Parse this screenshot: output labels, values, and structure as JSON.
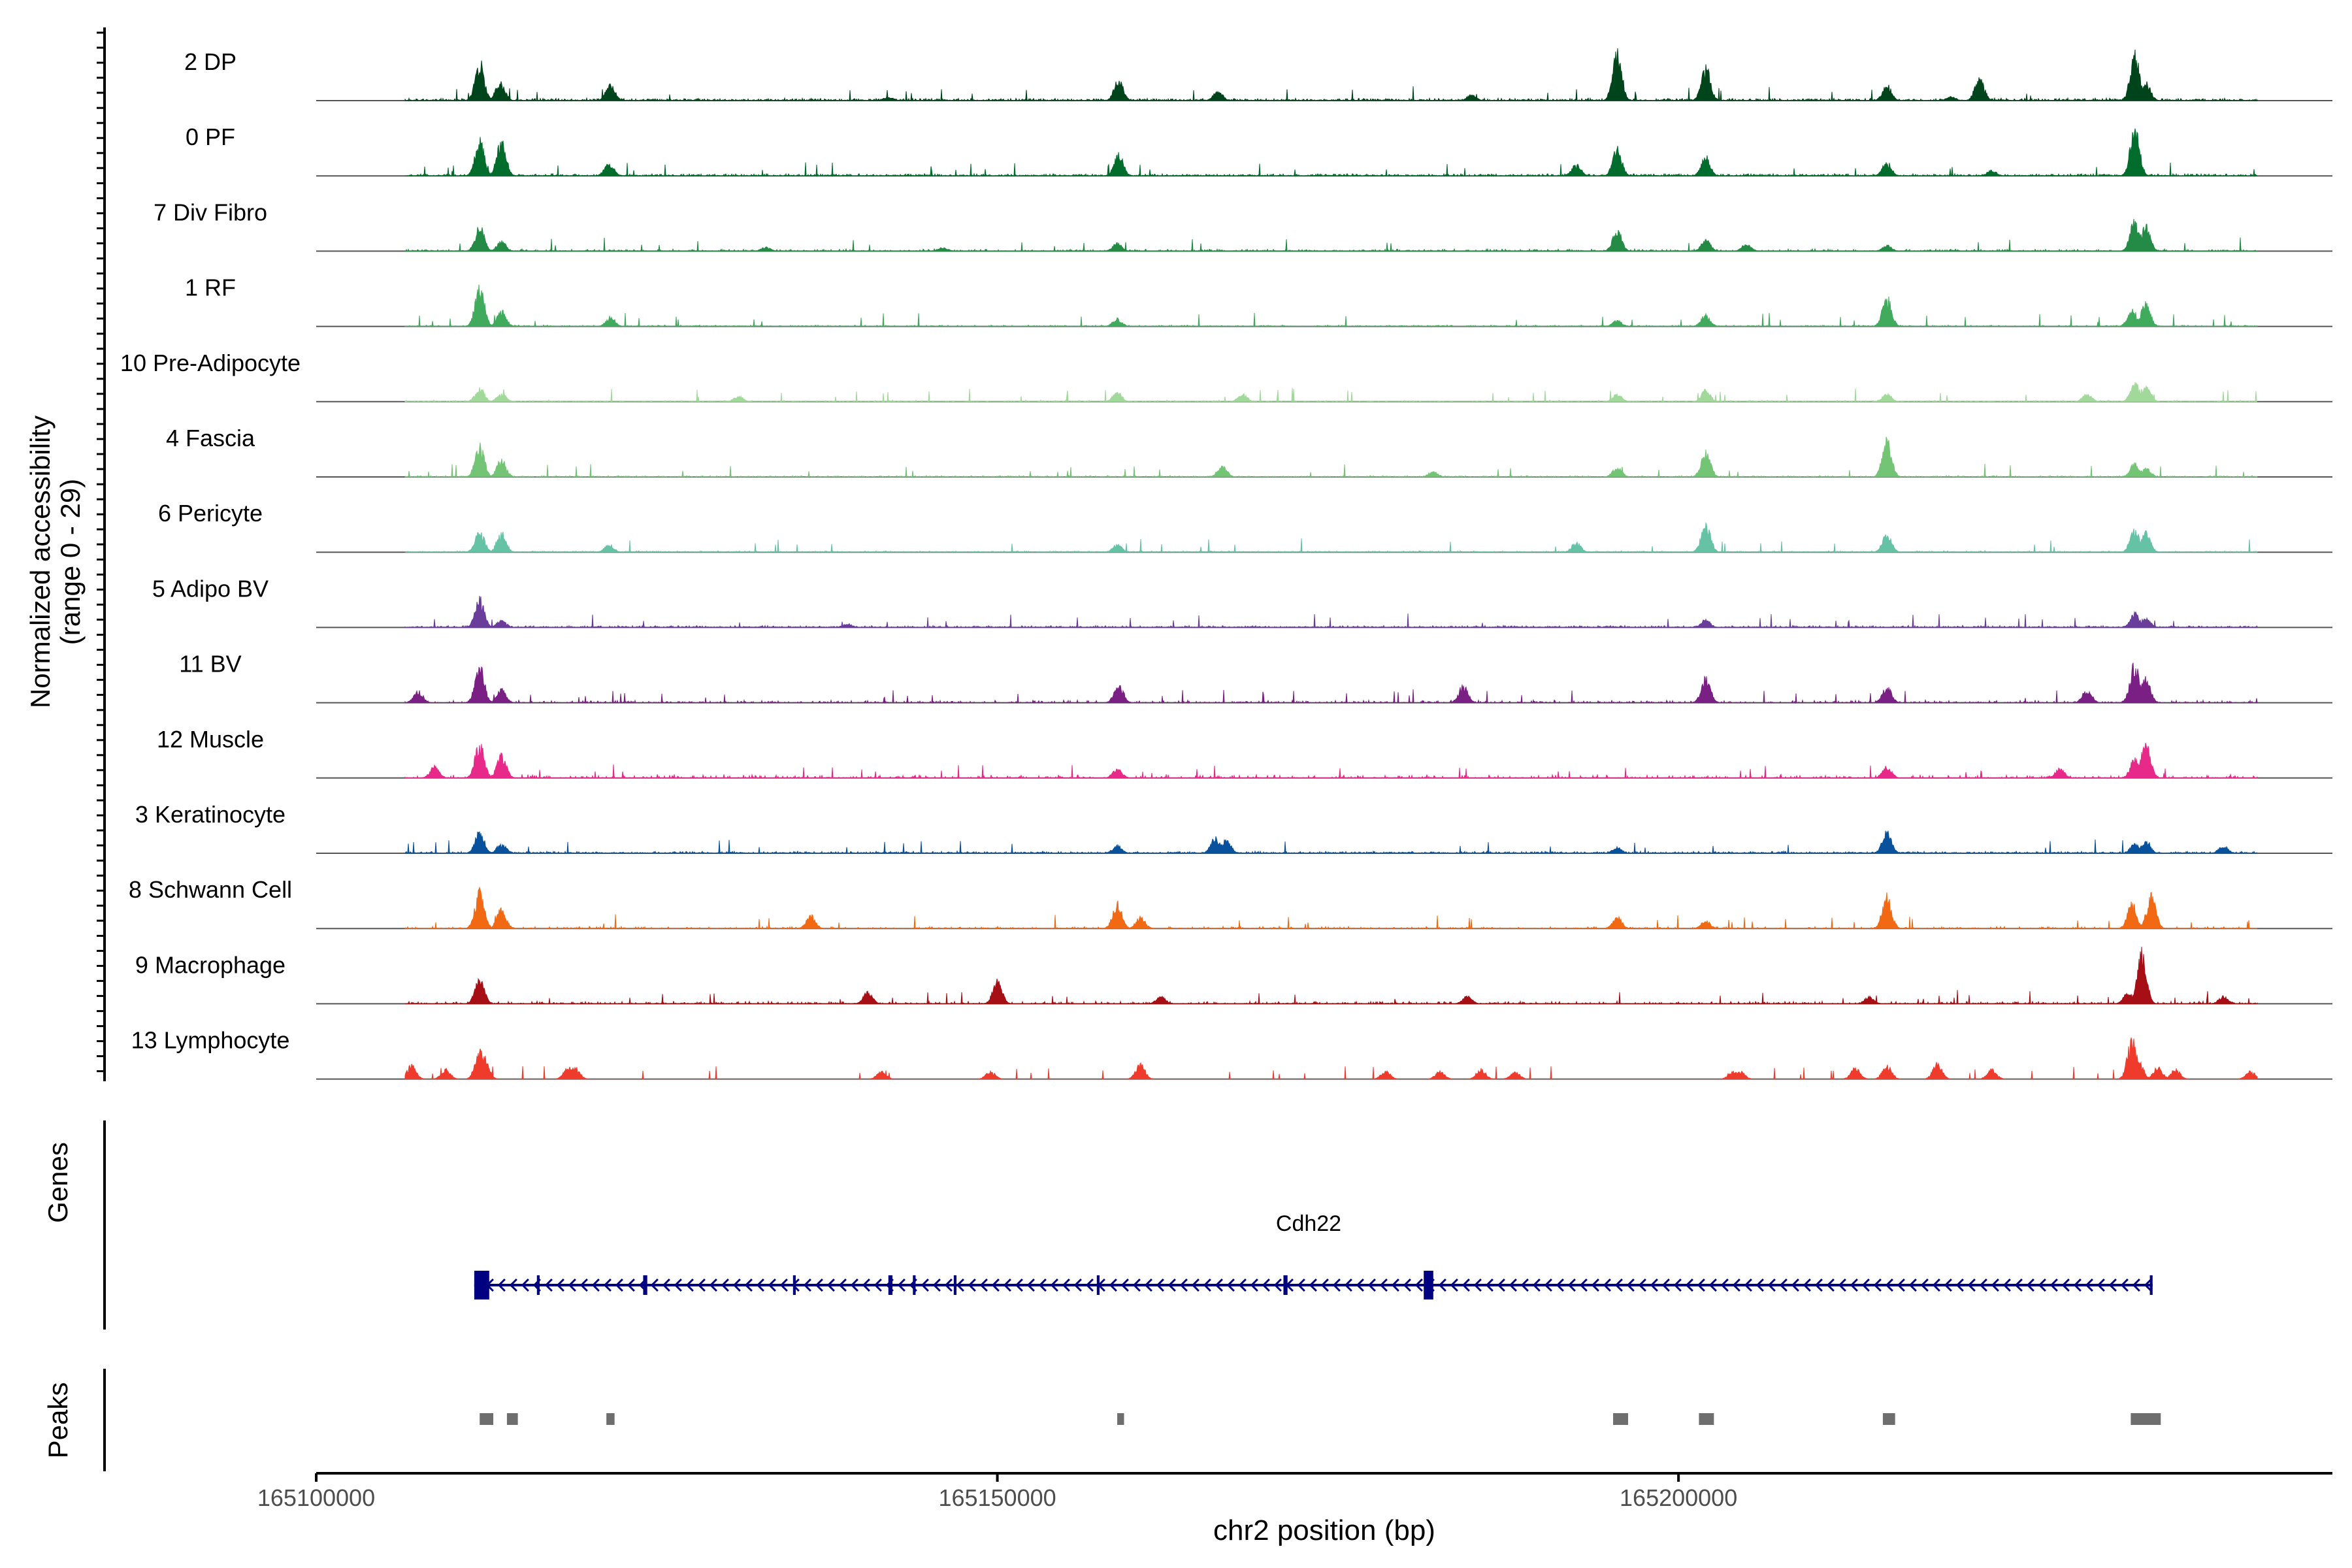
{
  "chart_data": {
    "type": "area",
    "title": "",
    "ylabel_line1": "Normalized accessibility",
    "ylabel_line2": "(range 0 - 29)",
    "xlabel": "chr2 position (bp)",
    "xlim": [
      165100000,
      165248000
    ],
    "xticks": [
      165100000,
      165150000,
      165200000
    ],
    "xtick_labels": [
      "165100000",
      "165150000",
      "165200000"
    ],
    "ylim": [
      0,
      29
    ],
    "genes_label": "Genes",
    "peaks_label": "Peaks",
    "gene": {
      "name": "Cdh22",
      "strand": "-",
      "start": 165111600,
      "end": 165234800,
      "exons": [
        [
          165111600,
          165112700
        ],
        [
          165116200,
          165116400
        ],
        [
          165124000,
          165124300
        ],
        [
          165135000,
          165135200
        ],
        [
          165142000,
          165142300
        ],
        [
          165143800,
          165144000
        ],
        [
          165146800,
          165147000
        ],
        [
          165157300,
          165157500
        ],
        [
          165171000,
          165171300
        ],
        [
          165181300,
          165182000
        ],
        [
          165234600,
          165234800
        ]
      ]
    },
    "peaks": [
      [
        165112000,
        165113000
      ],
      [
        165114000,
        165114800
      ],
      [
        165121300,
        165121900
      ],
      [
        165158800,
        165159300
      ],
      [
        165195200,
        165196300
      ],
      [
        165201500,
        165202600
      ],
      [
        165215000,
        165215900
      ],
      [
        165233200,
        165235400
      ]
    ],
    "series": [
      {
        "name": "2 DP",
        "color": "#00441b",
        "noise": 0.55,
        "density": 0.9,
        "peaks": [
          [
            165112000,
            20
          ],
          [
            165113500,
            10
          ],
          [
            165121600,
            8
          ],
          [
            165158900,
            11
          ],
          [
            165166200,
            5
          ],
          [
            165184800,
            3
          ],
          [
            165195500,
            26
          ],
          [
            165202000,
            18
          ],
          [
            165215300,
            8
          ],
          [
            165222100,
            12
          ],
          [
            165233500,
            24
          ],
          [
            165234300,
            10
          ],
          [
            165220000,
            2
          ],
          [
            165142000,
            2
          ]
        ]
      },
      {
        "name": "0 PF",
        "color": "#006d2c",
        "noise": 0.5,
        "density": 0.9,
        "peaks": [
          [
            165112000,
            18
          ],
          [
            165113600,
            18
          ],
          [
            165121500,
            7
          ],
          [
            165158900,
            11
          ],
          [
            165192500,
            6
          ],
          [
            165195500,
            14
          ],
          [
            165202000,
            10
          ],
          [
            165215300,
            7
          ],
          [
            165233500,
            25
          ],
          [
            165223000,
            3
          ]
        ]
      },
      {
        "name": "7 Div Fibro",
        "color": "#238b45",
        "noise": 0.5,
        "density": 0.55,
        "peaks": [
          [
            165112000,
            13
          ],
          [
            165113600,
            5
          ],
          [
            165133000,
            2
          ],
          [
            165146000,
            2
          ],
          [
            165158800,
            4
          ],
          [
            165195500,
            11
          ],
          [
            165202000,
            6
          ],
          [
            165205000,
            4
          ],
          [
            165215300,
            3
          ],
          [
            165233500,
            16
          ],
          [
            165234300,
            14
          ]
        ]
      },
      {
        "name": "1 RF",
        "color": "#41ab5d",
        "noise": 0.3,
        "density": 0.9,
        "peaks": [
          [
            165112000,
            20
          ],
          [
            165113600,
            8
          ],
          [
            165121600,
            5
          ],
          [
            165158800,
            4
          ],
          [
            165195500,
            3
          ],
          [
            165202000,
            6
          ],
          [
            165215300,
            15
          ],
          [
            165233300,
            9
          ],
          [
            165234300,
            12
          ]
        ]
      },
      {
        "name": "10 Pre-Adipocyte",
        "color": "#a1d99b",
        "noise": 0.35,
        "density": 0.35,
        "peaks": [
          [
            165112000,
            7
          ],
          [
            165113600,
            4
          ],
          [
            165131000,
            3
          ],
          [
            165158800,
            5
          ],
          [
            165168000,
            4
          ],
          [
            165195500,
            4
          ],
          [
            165202000,
            6
          ],
          [
            165215300,
            4
          ],
          [
            165233500,
            10
          ],
          [
            165234300,
            9
          ],
          [
            165230000,
            4
          ]
        ]
      },
      {
        "name": "4 Fascia",
        "color": "#74c476",
        "noise": 0.3,
        "density": 0.9,
        "peaks": [
          [
            165112000,
            16
          ],
          [
            165113600,
            9
          ],
          [
            165166500,
            6
          ],
          [
            165182000,
            3
          ],
          [
            165195500,
            5
          ],
          [
            165202000,
            14
          ],
          [
            165215300,
            19
          ],
          [
            165233500,
            7
          ],
          [
            165234300,
            5
          ]
        ]
      },
      {
        "name": "6 Pericyte",
        "color": "#66c2a4",
        "noise": 0.3,
        "density": 0.8,
        "peaks": [
          [
            165112000,
            11
          ],
          [
            165113600,
            10
          ],
          [
            165121500,
            4
          ],
          [
            165158800,
            4
          ],
          [
            165192500,
            5
          ],
          [
            165202000,
            15
          ],
          [
            165215300,
            9
          ],
          [
            165233500,
            12
          ],
          [
            165234300,
            10
          ]
        ]
      },
      {
        "name": "5 Adipo BV",
        "color": "#6a3d9a",
        "noise": 0.45,
        "density": 0.85,
        "peaks": [
          [
            165112000,
            15
          ],
          [
            165113600,
            4
          ],
          [
            165202000,
            4
          ],
          [
            165233500,
            8
          ],
          [
            165234300,
            5
          ],
          [
            165139000,
            2
          ]
        ]
      },
      {
        "name": "11 BV",
        "color": "#7a1f84",
        "noise": 0.6,
        "density": 0.4,
        "peaks": [
          [
            165112000,
            19
          ],
          [
            165113600,
            7
          ],
          [
            165158900,
            9
          ],
          [
            165184200,
            9
          ],
          [
            165202000,
            13
          ],
          [
            165215300,
            8
          ],
          [
            165233500,
            21
          ],
          [
            165234300,
            13
          ],
          [
            165230000,
            7
          ],
          [
            165107500,
            6
          ]
        ]
      },
      {
        "name": "12 Muscle",
        "color": "#e7298a",
        "noise": 0.8,
        "density": 0.3,
        "peaks": [
          [
            165112000,
            18
          ],
          [
            165113600,
            12
          ],
          [
            165108700,
            6
          ],
          [
            165158800,
            5
          ],
          [
            165215300,
            6
          ],
          [
            165233500,
            10
          ],
          [
            165234300,
            18
          ],
          [
            165228000,
            5
          ]
        ]
      },
      {
        "name": "3 Keratinocyte",
        "color": "#08519c",
        "noise": 0.45,
        "density": 0.95,
        "peaks": [
          [
            165112000,
            11
          ],
          [
            165113600,
            5
          ],
          [
            165158800,
            4
          ],
          [
            165166000,
            8
          ],
          [
            165166800,
            7
          ],
          [
            165195500,
            3
          ],
          [
            165215300,
            11
          ],
          [
            165233500,
            5
          ],
          [
            165234300,
            6
          ],
          [
            165240000,
            4
          ]
        ]
      },
      {
        "name": "8 Schwann Cell",
        "color": "#f16913",
        "noise": 0.45,
        "density": 0.4,
        "peaks": [
          [
            165112000,
            19
          ],
          [
            165113600,
            10
          ],
          [
            165136300,
            7
          ],
          [
            165158800,
            13
          ],
          [
            165160500,
            6
          ],
          [
            165195500,
            6
          ],
          [
            165202000,
            4
          ],
          [
            165215300,
            17
          ],
          [
            165233300,
            13
          ],
          [
            165234700,
            17
          ]
        ]
      },
      {
        "name": "9 Macrophage",
        "color": "#a50f15",
        "noise": 0.6,
        "density": 0.45,
        "peaks": [
          [
            165112000,
            13
          ],
          [
            165150000,
            12
          ],
          [
            165140500,
            6
          ],
          [
            165162000,
            4
          ],
          [
            165184500,
            4
          ],
          [
            165234000,
            27
          ],
          [
            165233000,
            6
          ],
          [
            165214000,
            4
          ],
          [
            165240000,
            4
          ]
        ]
      },
      {
        "name": "13 Lymphocyte",
        "color": "#ef3b2c",
        "noise": 0.0,
        "density": 0.0,
        "peaks": [
          [
            165107000,
            7
          ],
          [
            165109500,
            5
          ],
          [
            165112000,
            14
          ],
          [
            165112300,
            12
          ],
          [
            165118500,
            6
          ],
          [
            165119000,
            6
          ],
          [
            165141500,
            4
          ],
          [
            165149500,
            4
          ],
          [
            165160500,
            8
          ],
          [
            165178500,
            4
          ],
          [
            165182500,
            4
          ],
          [
            165185500,
            5
          ],
          [
            165188000,
            4
          ],
          [
            165204000,
            4
          ],
          [
            165204500,
            4
          ],
          [
            165213000,
            6
          ],
          [
            165215300,
            7
          ],
          [
            165219000,
            8
          ],
          [
            165223000,
            5
          ],
          [
            165233300,
            21
          ],
          [
            165233800,
            9
          ],
          [
            165235200,
            6
          ],
          [
            165236500,
            5
          ],
          [
            165242000,
            4
          ]
        ]
      }
    ]
  }
}
